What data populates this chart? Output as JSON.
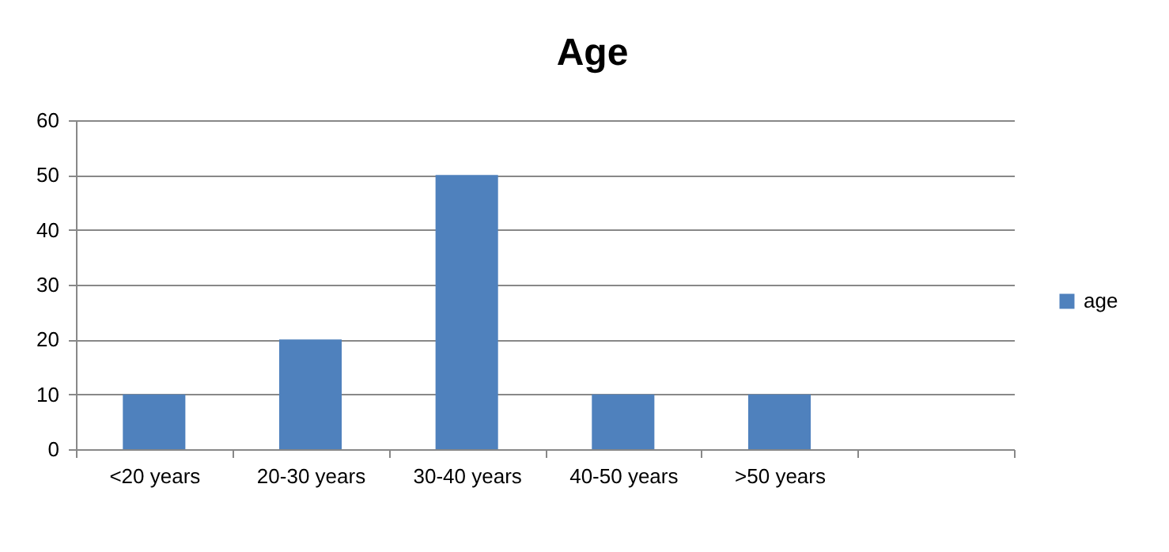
{
  "chart_data": {
    "type": "bar",
    "title": "Age",
    "categories": [
      "<20 years",
      "20-30 years",
      "30-40 years",
      "40-50 years",
      ">50 years",
      null
    ],
    "series": [
      {
        "name": "age",
        "color": "#4f81bd",
        "values": [
          10,
          20,
          50,
          10,
          10,
          null
        ]
      }
    ],
    "ylim": [
      0,
      60
    ],
    "yticks": [
      0,
      10,
      20,
      30,
      40,
      50,
      60
    ],
    "grid": "y",
    "legend": "right"
  }
}
